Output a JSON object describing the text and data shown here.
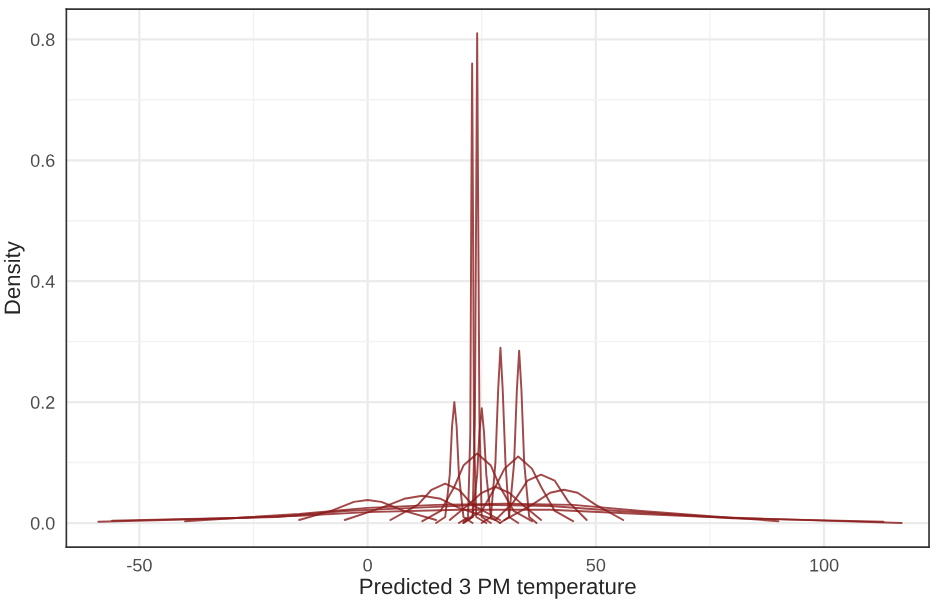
{
  "chart_data": {
    "type": "line",
    "xlabel": "Predicted 3 PM temperature",
    "ylabel": "Density",
    "xlim": [
      -66,
      123
    ],
    "ylim": [
      -0.04,
      0.85
    ],
    "xticks": [
      -50,
      0,
      50,
      100
    ],
    "yticks": [
      {
        "value": 0,
        "label": "0.0"
      },
      {
        "value": 0.2,
        "label": "0.2"
      },
      {
        "value": 0.4,
        "label": "0.4"
      },
      {
        "value": 0.6,
        "label": "0.6"
      },
      {
        "value": 0.8,
        "label": "0.8"
      }
    ],
    "grid": true,
    "series": [
      {
        "color": "#8b1a1a",
        "x": [
          -59,
          -30,
          -15,
          0,
          20,
          40,
          60,
          75,
          100,
          117
        ],
        "values": [
          0.002,
          0.008,
          0.012,
          0.018,
          0.022,
          0.022,
          0.015,
          0.01,
          0.004,
          0.0
        ]
      },
      {
        "color": "#8b1a1a",
        "x": [
          -56,
          -20,
          -5,
          10,
          25,
          40,
          55,
          80,
          113
        ],
        "values": [
          0.004,
          0.01,
          0.02,
          0.025,
          0.03,
          0.028,
          0.02,
          0.008,
          0.002
        ]
      },
      {
        "color": "#8b1a1a",
        "x": [
          -40,
          -15,
          0,
          15,
          30,
          45,
          60,
          90
        ],
        "values": [
          0.003,
          0.015,
          0.025,
          0.03,
          0.032,
          0.03,
          0.02,
          0.003
        ]
      },
      {
        "color": "#8b1a1a",
        "x": [
          -15,
          -8,
          -3,
          0,
          3,
          8,
          15
        ],
        "values": [
          0.005,
          0.02,
          0.035,
          0.038,
          0.035,
          0.02,
          0.005
        ]
      },
      {
        "color": "#8b1a1a",
        "x": [
          -5,
          3,
          8,
          12,
          16,
          20,
          28
        ],
        "values": [
          0.005,
          0.025,
          0.04,
          0.045,
          0.04,
          0.025,
          0.005
        ]
      },
      {
        "color": "#8b1a1a",
        "x": [
          5,
          11,
          14,
          17,
          20,
          23,
          29
        ],
        "values": [
          0.005,
          0.03,
          0.055,
          0.065,
          0.055,
          0.03,
          0.005
        ]
      },
      {
        "color": "#8b1a1a",
        "x": [
          30,
          36,
          40,
          43,
          46,
          50,
          56
        ],
        "values": [
          0.005,
          0.03,
          0.05,
          0.055,
          0.05,
          0.03,
          0.005
        ]
      },
      {
        "color": "#8b1a1a",
        "x": [
          28,
          32,
          35,
          38,
          41,
          44,
          48
        ],
        "values": [
          0.005,
          0.035,
          0.07,
          0.08,
          0.07,
          0.035,
          0.005
        ]
      },
      {
        "color": "#8b1a1a",
        "x": [
          18,
          22,
          25,
          28,
          31,
          34,
          38
        ],
        "values": [
          0.005,
          0.03,
          0.05,
          0.06,
          0.05,
          0.03,
          0.005
        ]
      },
      {
        "color": "#8b1a1a",
        "x": [
          12,
          16,
          19,
          21,
          24,
          27,
          29,
          32,
          36
        ],
        "values": [
          0.003,
          0.02,
          0.06,
          0.095,
          0.115,
          0.095,
          0.06,
          0.02,
          0.003
        ]
      },
      {
        "color": "#8b1a1a",
        "x": [
          21,
          25,
          28,
          30,
          33,
          36,
          38,
          41,
          45
        ],
        "values": [
          0.003,
          0.02,
          0.06,
          0.09,
          0.11,
          0.09,
          0.06,
          0.02,
          0.003
        ]
      },
      {
        "color": "#8b1a1a",
        "x": [
          15,
          17,
          18,
          18.5,
          19,
          19.5,
          20,
          21,
          23
        ],
        "values": [
          0.0,
          0.01,
          0.08,
          0.16,
          0.2,
          0.16,
          0.08,
          0.01,
          0.0
        ]
      },
      {
        "color": "#8b1a1a",
        "x": [
          20,
          22,
          22.5,
          22.7,
          22.9,
          23.1,
          23.3,
          23.8,
          26
        ],
        "values": [
          0.0,
          0.01,
          0.15,
          0.5,
          0.76,
          0.5,
          0.15,
          0.01,
          0.0
        ]
      },
      {
        "color": "#8b1a1a",
        "x": [
          21,
          23,
          23.5,
          23.8,
          24,
          24.2,
          24.5,
          25,
          27
        ],
        "values": [
          0.0,
          0.01,
          0.17,
          0.55,
          0.81,
          0.55,
          0.17,
          0.01,
          0.0
        ]
      },
      {
        "color": "#8b1a1a",
        "x": [
          21,
          23,
          24,
          24.5,
          25,
          25.5,
          26,
          27,
          29
        ],
        "values": [
          0.0,
          0.01,
          0.08,
          0.15,
          0.19,
          0.15,
          0.08,
          0.01,
          0.0
        ]
      },
      {
        "color": "#8b1a1a",
        "x": [
          25,
          27,
          28,
          28.6,
          29.1,
          29.6,
          30.2,
          31,
          33
        ],
        "values": [
          0.0,
          0.01,
          0.1,
          0.22,
          0.29,
          0.22,
          0.1,
          0.01,
          0.0
        ]
      },
      {
        "color": "#8b1a1a",
        "x": [
          29,
          31,
          32.1,
          32.7,
          33.2,
          33.7,
          34.3,
          35.4,
          37
        ],
        "values": [
          0.0,
          0.01,
          0.1,
          0.22,
          0.285,
          0.22,
          0.1,
          0.01,
          0.0
        ]
      }
    ]
  }
}
